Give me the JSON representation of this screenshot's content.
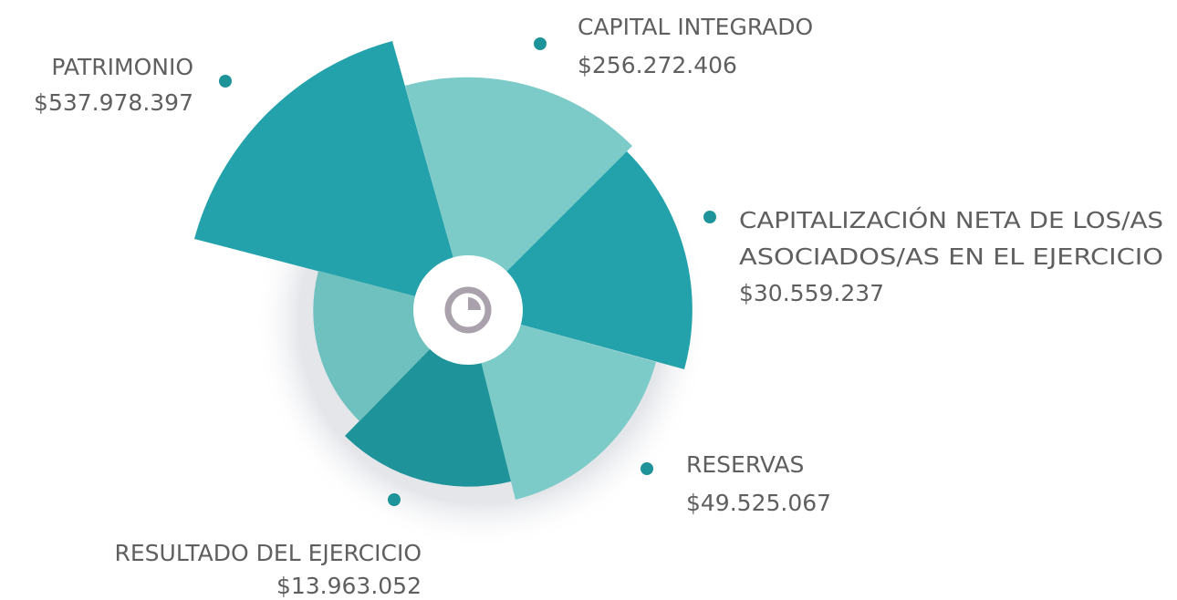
{
  "items": [
    {
      "label": "PATRIMONIO",
      "value": "$537.978.397"
    },
    {
      "label": "CAPITAL INTEGRADO",
      "value": "$256.272.406"
    },
    {
      "label_lines": [
        "CAPITALIZACIÓN NETA DE LOS/AS",
        "ASOCIADOS/AS EN EL EJERCICIO"
      ],
      "value": "$30.559.237"
    },
    {
      "label": "RESERVAS",
      "value": "$49.525.067"
    },
    {
      "label": "RESULTADO DEL EJERCICIO",
      "value": "$13.963.052"
    }
  ]
}
